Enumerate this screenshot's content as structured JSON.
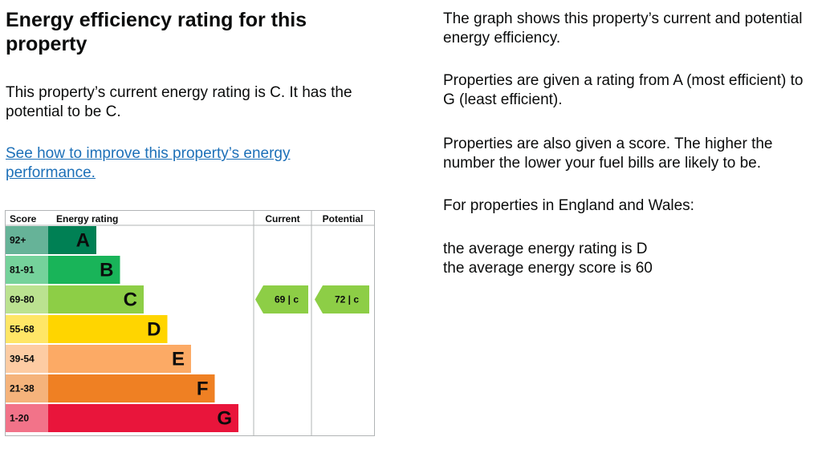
{
  "title": "Energy efficiency rating for this property",
  "current_text": "This property’s current energy rating is C. It has the potential to be C.",
  "link_text": "See how to improve this property’s energy performance.",
  "info": {
    "p1": "The graph shows this property’s current and potential energy efficiency.",
    "p2": "Properties are given a rating from A (most efficient) to G (least efficient).",
    "p3": "Properties are also given a score. The higher the number the lower your fuel bills are likely to be.",
    "p4": "For properties in England and Wales:",
    "p5": "the average energy rating is D",
    "p6": "the average energy score is 60"
  },
  "chart_data": {
    "type": "bar",
    "headers": {
      "score": "Score",
      "rating": "Energy rating",
      "current": "Current",
      "potential": "Potential"
    },
    "bands": [
      {
        "letter": "A",
        "range": "92+",
        "color": "#008054"
      },
      {
        "letter": "B",
        "range": "81-91",
        "color": "#19b459"
      },
      {
        "letter": "C",
        "range": "69-80",
        "color": "#8dce46"
      },
      {
        "letter": "D",
        "range": "55-68",
        "color": "#ffd500"
      },
      {
        "letter": "E",
        "range": "39-54",
        "color": "#fcaa65"
      },
      {
        "letter": "F",
        "range": "21-38",
        "color": "#ef8023"
      },
      {
        "letter": "G",
        "range": "1-20",
        "color": "#e9153b"
      }
    ],
    "current": {
      "score": 69,
      "band": "C",
      "color": "#8dce46"
    },
    "potential": {
      "score": 72,
      "band": "C",
      "color": "#8dce46"
    }
  }
}
